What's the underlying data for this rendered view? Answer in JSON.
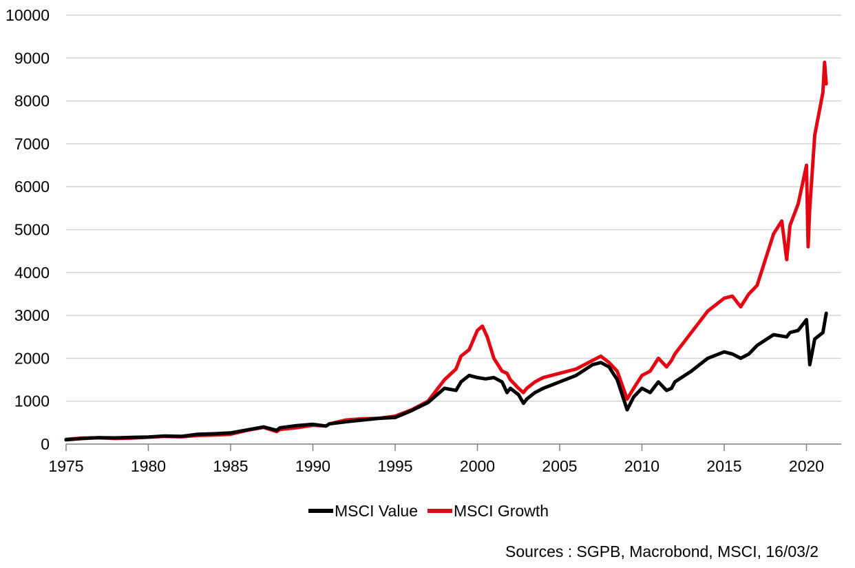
{
  "chart_data": {
    "type": "line",
    "title": "",
    "xlabel": "",
    "ylabel": "",
    "xlim": [
      1975,
      2021.3
    ],
    "ylim": [
      0,
      10000
    ],
    "y_ticks": [
      "0",
      "1000",
      "2000",
      "3000",
      "4000",
      "5000",
      "6000",
      "7000",
      "8000",
      "9000",
      "10000"
    ],
    "x_ticks": [
      "1975",
      "1980",
      "1985",
      "1990",
      "1995",
      "2000",
      "2005",
      "2010",
      "2015",
      "2020"
    ],
    "grid": "horizontal",
    "legend_position": "bottom",
    "series": [
      {
        "name": "MSCI Value",
        "color": "#000000",
        "x": [
          1975,
          1976,
          1977,
          1978,
          1979,
          1980,
          1981,
          1982,
          1983,
          1984,
          1985,
          1986,
          1987,
          1987.8,
          1988,
          1989,
          1990,
          1990.8,
          1991,
          1992,
          1993,
          1994,
          1995,
          1996,
          1997,
          1998,
          1998.7,
          1999,
          1999.5,
          2000,
          2000.5,
          2001,
          2001.5,
          2001.8,
          2002,
          2002.5,
          2002.8,
          2003,
          2003.5,
          2004,
          2005,
          2006,
          2007,
          2007.5,
          2008,
          2008.5,
          2009.1,
          2009.5,
          2010,
          2010.5,
          2011,
          2011.5,
          2011.8,
          2012,
          2013,
          2014,
          2015,
          2015.5,
          2016,
          2016.5,
          2017,
          2018,
          2018.8,
          2019,
          2019.5,
          2020,
          2020.1,
          2020.2,
          2020.5,
          2021,
          2021.2
        ],
        "y": [
          100,
          130,
          150,
          145,
          155,
          165,
          190,
          180,
          230,
          240,
          260,
          330,
          400,
          320,
          380,
          430,
          460,
          420,
          470,
          520,
          560,
          600,
          620,
          780,
          970,
          1300,
          1250,
          1450,
          1600,
          1550,
          1520,
          1550,
          1450,
          1200,
          1300,
          1150,
          950,
          1050,
          1200,
          1300,
          1450,
          1600,
          1850,
          1900,
          1800,
          1500,
          800,
          1100,
          1300,
          1200,
          1450,
          1250,
          1300,
          1450,
          1700,
          2000,
          2150,
          2100,
          2000,
          2100,
          2300,
          2550,
          2500,
          2600,
          2650,
          2900,
          2400,
          1850,
          2450,
          2600,
          3050
        ]
      },
      {
        "name": "MSCI Growth",
        "color": "#E30613",
        "x": [
          1975,
          1976,
          1977,
          1978,
          1979,
          1980,
          1981,
          1982,
          1983,
          1984,
          1985,
          1986,
          1987,
          1987.8,
          1988,
          1989,
          1990,
          1990.8,
          1991,
          1992,
          1993,
          1994,
          1995,
          1996,
          1997,
          1998,
          1998.7,
          1999,
          1999.5,
          2000,
          2000.3,
          2000.6,
          2001,
          2001.5,
          2001.8,
          2002,
          2002.5,
          2002.8,
          2003,
          2003.5,
          2004,
          2005,
          2006,
          2007,
          2007.5,
          2008,
          2008.5,
          2009.1,
          2009.5,
          2010,
          2010.5,
          2011,
          2011.5,
          2011.8,
          2012,
          2013,
          2014,
          2015,
          2015.5,
          2016,
          2016.5,
          2017,
          2018,
          2018.5,
          2018.8,
          2019,
          2019.5,
          2020,
          2020.1,
          2020.2,
          2020.5,
          2021,
          2021.1,
          2021.2
        ],
        "y": [
          110,
          140,
          150,
          130,
          140,
          160,
          180,
          170,
          200,
          210,
          230,
          320,
          390,
          290,
          340,
          380,
          440,
          420,
          470,
          560,
          590,
          600,
          650,
          800,
          1000,
          1500,
          1750,
          2050,
          2200,
          2650,
          2750,
          2500,
          2000,
          1700,
          1650,
          1500,
          1300,
          1200,
          1300,
          1450,
          1550,
          1650,
          1750,
          1950,
          2050,
          1900,
          1700,
          1050,
          1300,
          1600,
          1700,
          2000,
          1800,
          1950,
          2100,
          2600,
          3100,
          3400,
          3450,
          3200,
          3500,
          3700,
          4900,
          5200,
          4300,
          5100,
          5600,
          6500,
          4600,
          5500,
          7200,
          8200,
          8900,
          8400
        ]
      }
    ]
  },
  "legend": {
    "items": [
      {
        "label": "MSCI Value",
        "color": "#000000"
      },
      {
        "label": "MSCI Growth",
        "color": "#E30613"
      }
    ]
  },
  "footer": {
    "source": "Sources : SGPB, Macrobond, MSCI, 16/03/2"
  }
}
